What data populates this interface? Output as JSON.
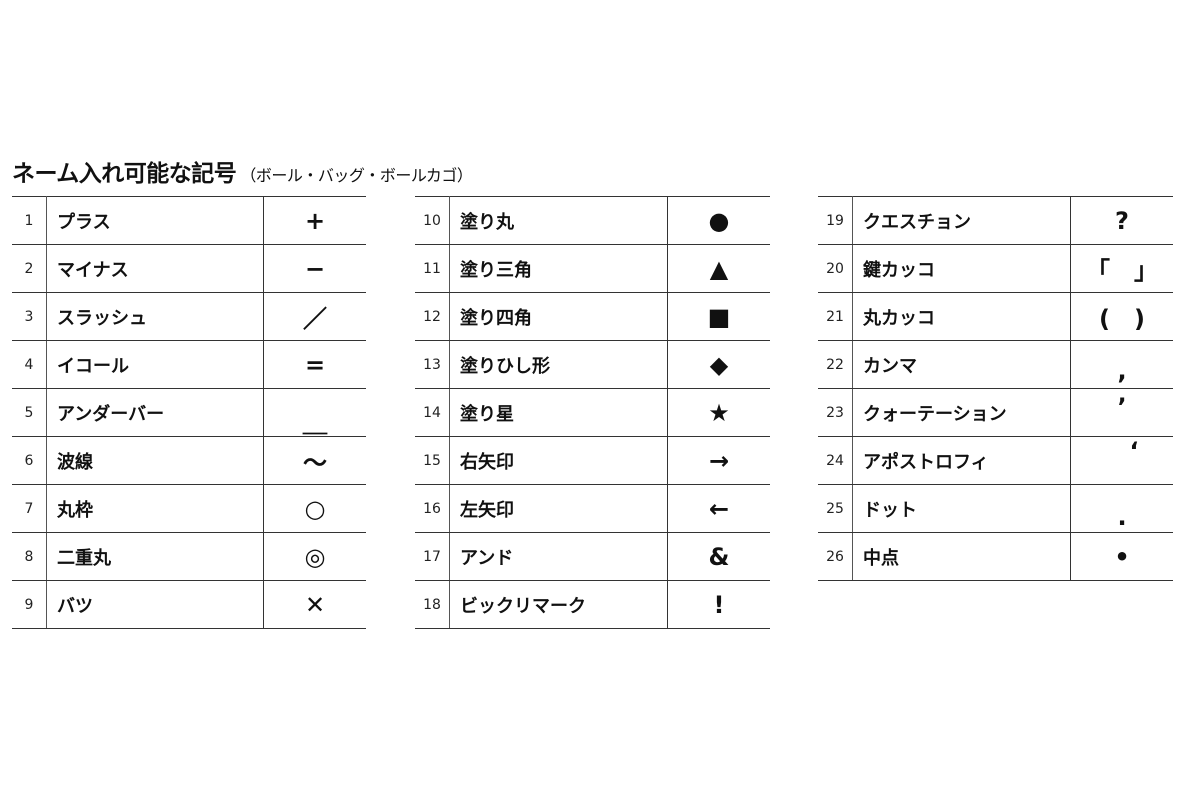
{
  "title": "ネーム入れ可能な記号",
  "subtitle": "（ボール・バッグ・ボールカゴ）",
  "tables": [
    [
      {
        "num": "1",
        "name": "プラス",
        "symbol": "+",
        "icon": "plus-icon"
      },
      {
        "num": "2",
        "name": "マイナス",
        "symbol": "−",
        "icon": "minus-icon"
      },
      {
        "num": "3",
        "name": "スラッシュ",
        "symbol": "／",
        "icon": "slash-icon"
      },
      {
        "num": "4",
        "name": "イコール",
        "symbol": "=",
        "icon": "equals-icon"
      },
      {
        "num": "5",
        "name": "アンダーバー",
        "symbol": "＿",
        "icon": "underscore-icon"
      },
      {
        "num": "6",
        "name": "波線",
        "symbol": "〜",
        "icon": "tilde-icon"
      },
      {
        "num": "7",
        "name": "丸枠",
        "symbol": "○",
        "icon": "circle-outline-icon"
      },
      {
        "num": "8",
        "name": "二重丸",
        "symbol": "◎",
        "icon": "double-circle-icon"
      },
      {
        "num": "9",
        "name": "バツ",
        "symbol": "✕",
        "icon": "cross-icon"
      }
    ],
    [
      {
        "num": "10",
        "name": "塗り丸",
        "symbol": "●",
        "icon": "filled-circle-icon"
      },
      {
        "num": "11",
        "name": "塗り三角",
        "symbol": "▲",
        "icon": "filled-triangle-icon"
      },
      {
        "num": "12",
        "name": "塗り四角",
        "symbol": "■",
        "icon": "filled-square-icon"
      },
      {
        "num": "13",
        "name": "塗りひし形",
        "symbol": "◆",
        "icon": "filled-diamond-icon"
      },
      {
        "num": "14",
        "name": "塗り星",
        "symbol": "★",
        "icon": "filled-star-icon"
      },
      {
        "num": "15",
        "name": "右矢印",
        "symbol": "→",
        "icon": "right-arrow-icon"
      },
      {
        "num": "16",
        "name": "左矢印",
        "symbol": "←",
        "icon": "left-arrow-icon"
      },
      {
        "num": "17",
        "name": "アンド",
        "symbol": "&",
        "icon": "ampersand-icon"
      },
      {
        "num": "18",
        "name": "ビックリマーク",
        "symbol": "!",
        "icon": "exclamation-icon"
      }
    ],
    [
      {
        "num": "19",
        "name": "クエスチョン",
        "symbol": "?",
        "icon": "question-icon"
      },
      {
        "num": "20",
        "name": "鍵カッコ",
        "symbol": "「　」",
        "icon": "corner-brackets-icon"
      },
      {
        "num": "21",
        "name": "丸カッコ",
        "symbol": "(　)",
        "icon": "parentheses-icon"
      },
      {
        "num": "22",
        "name": "カンマ",
        "symbol": ",",
        "icon": "comma-icon"
      },
      {
        "num": "23",
        "name": "クォーテーション",
        "symbol": "’",
        "icon": "quotation-icon"
      },
      {
        "num": "24",
        "name": "アポストロフィ",
        "symbol": "‘",
        "icon": "apostrophe-icon"
      },
      {
        "num": "25",
        "name": "ドット",
        "symbol": ".",
        "icon": "dot-icon"
      },
      {
        "num": "26",
        "name": "中点",
        "symbol": "•",
        "icon": "middle-dot-icon"
      }
    ]
  ]
}
